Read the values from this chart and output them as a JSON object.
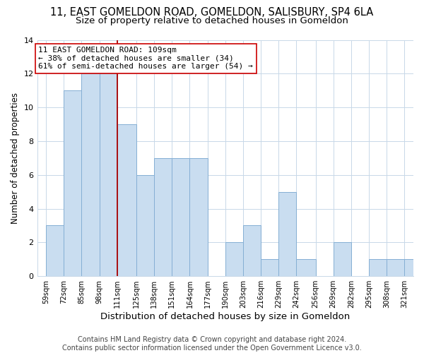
{
  "title": "11, EAST GOMELDON ROAD, GOMELDON, SALISBURY, SP4 6LA",
  "subtitle": "Size of property relative to detached houses in Gomeldon",
  "xlabel": "Distribution of detached houses by size in Gomeldon",
  "ylabel": "Number of detached properties",
  "bar_edges": [
    59,
    72,
    85,
    98,
    111,
    125,
    138,
    151,
    164,
    177,
    190,
    203,
    216,
    229,
    242,
    256,
    269,
    282,
    295,
    308,
    321
  ],
  "bar_heights": [
    3,
    11,
    12,
    12,
    9,
    6,
    7,
    7,
    7,
    0,
    2,
    3,
    1,
    5,
    1,
    0,
    2,
    0,
    1,
    1,
    1
  ],
  "bar_color": "#c9ddf0",
  "bar_edge_color": "#85afd4",
  "property_line_x": 111,
  "property_line_color": "#aa0000",
  "annotation_text": "11 EAST GOMELDON ROAD: 109sqm\n← 38% of detached houses are smaller (34)\n61% of semi-detached houses are larger (54) →",
  "annotation_box_color": "#ffffff",
  "annotation_box_edge_color": "#cc0000",
  "ylim": [
    0,
    14
  ],
  "yticks": [
    0,
    2,
    4,
    6,
    8,
    10,
    12,
    14
  ],
  "tick_labels": [
    "59sqm",
    "72sqm",
    "85sqm",
    "98sqm",
    "111sqm",
    "125sqm",
    "138sqm",
    "151sqm",
    "164sqm",
    "177sqm",
    "190sqm",
    "203sqm",
    "216sqm",
    "229sqm",
    "242sqm",
    "256sqm",
    "269sqm",
    "282sqm",
    "295sqm",
    "308sqm",
    "321sqm"
  ],
  "footer_text": "Contains HM Land Registry data © Crown copyright and database right 2024.\nContains public sector information licensed under the Open Government Licence v3.0.",
  "title_fontsize": 10.5,
  "subtitle_fontsize": 9.5,
  "xlabel_fontsize": 9.5,
  "ylabel_fontsize": 8.5,
  "annotation_fontsize": 8,
  "footer_fontsize": 7,
  "bg_color": "#ffffff",
  "grid_color": "#c8d8e8"
}
